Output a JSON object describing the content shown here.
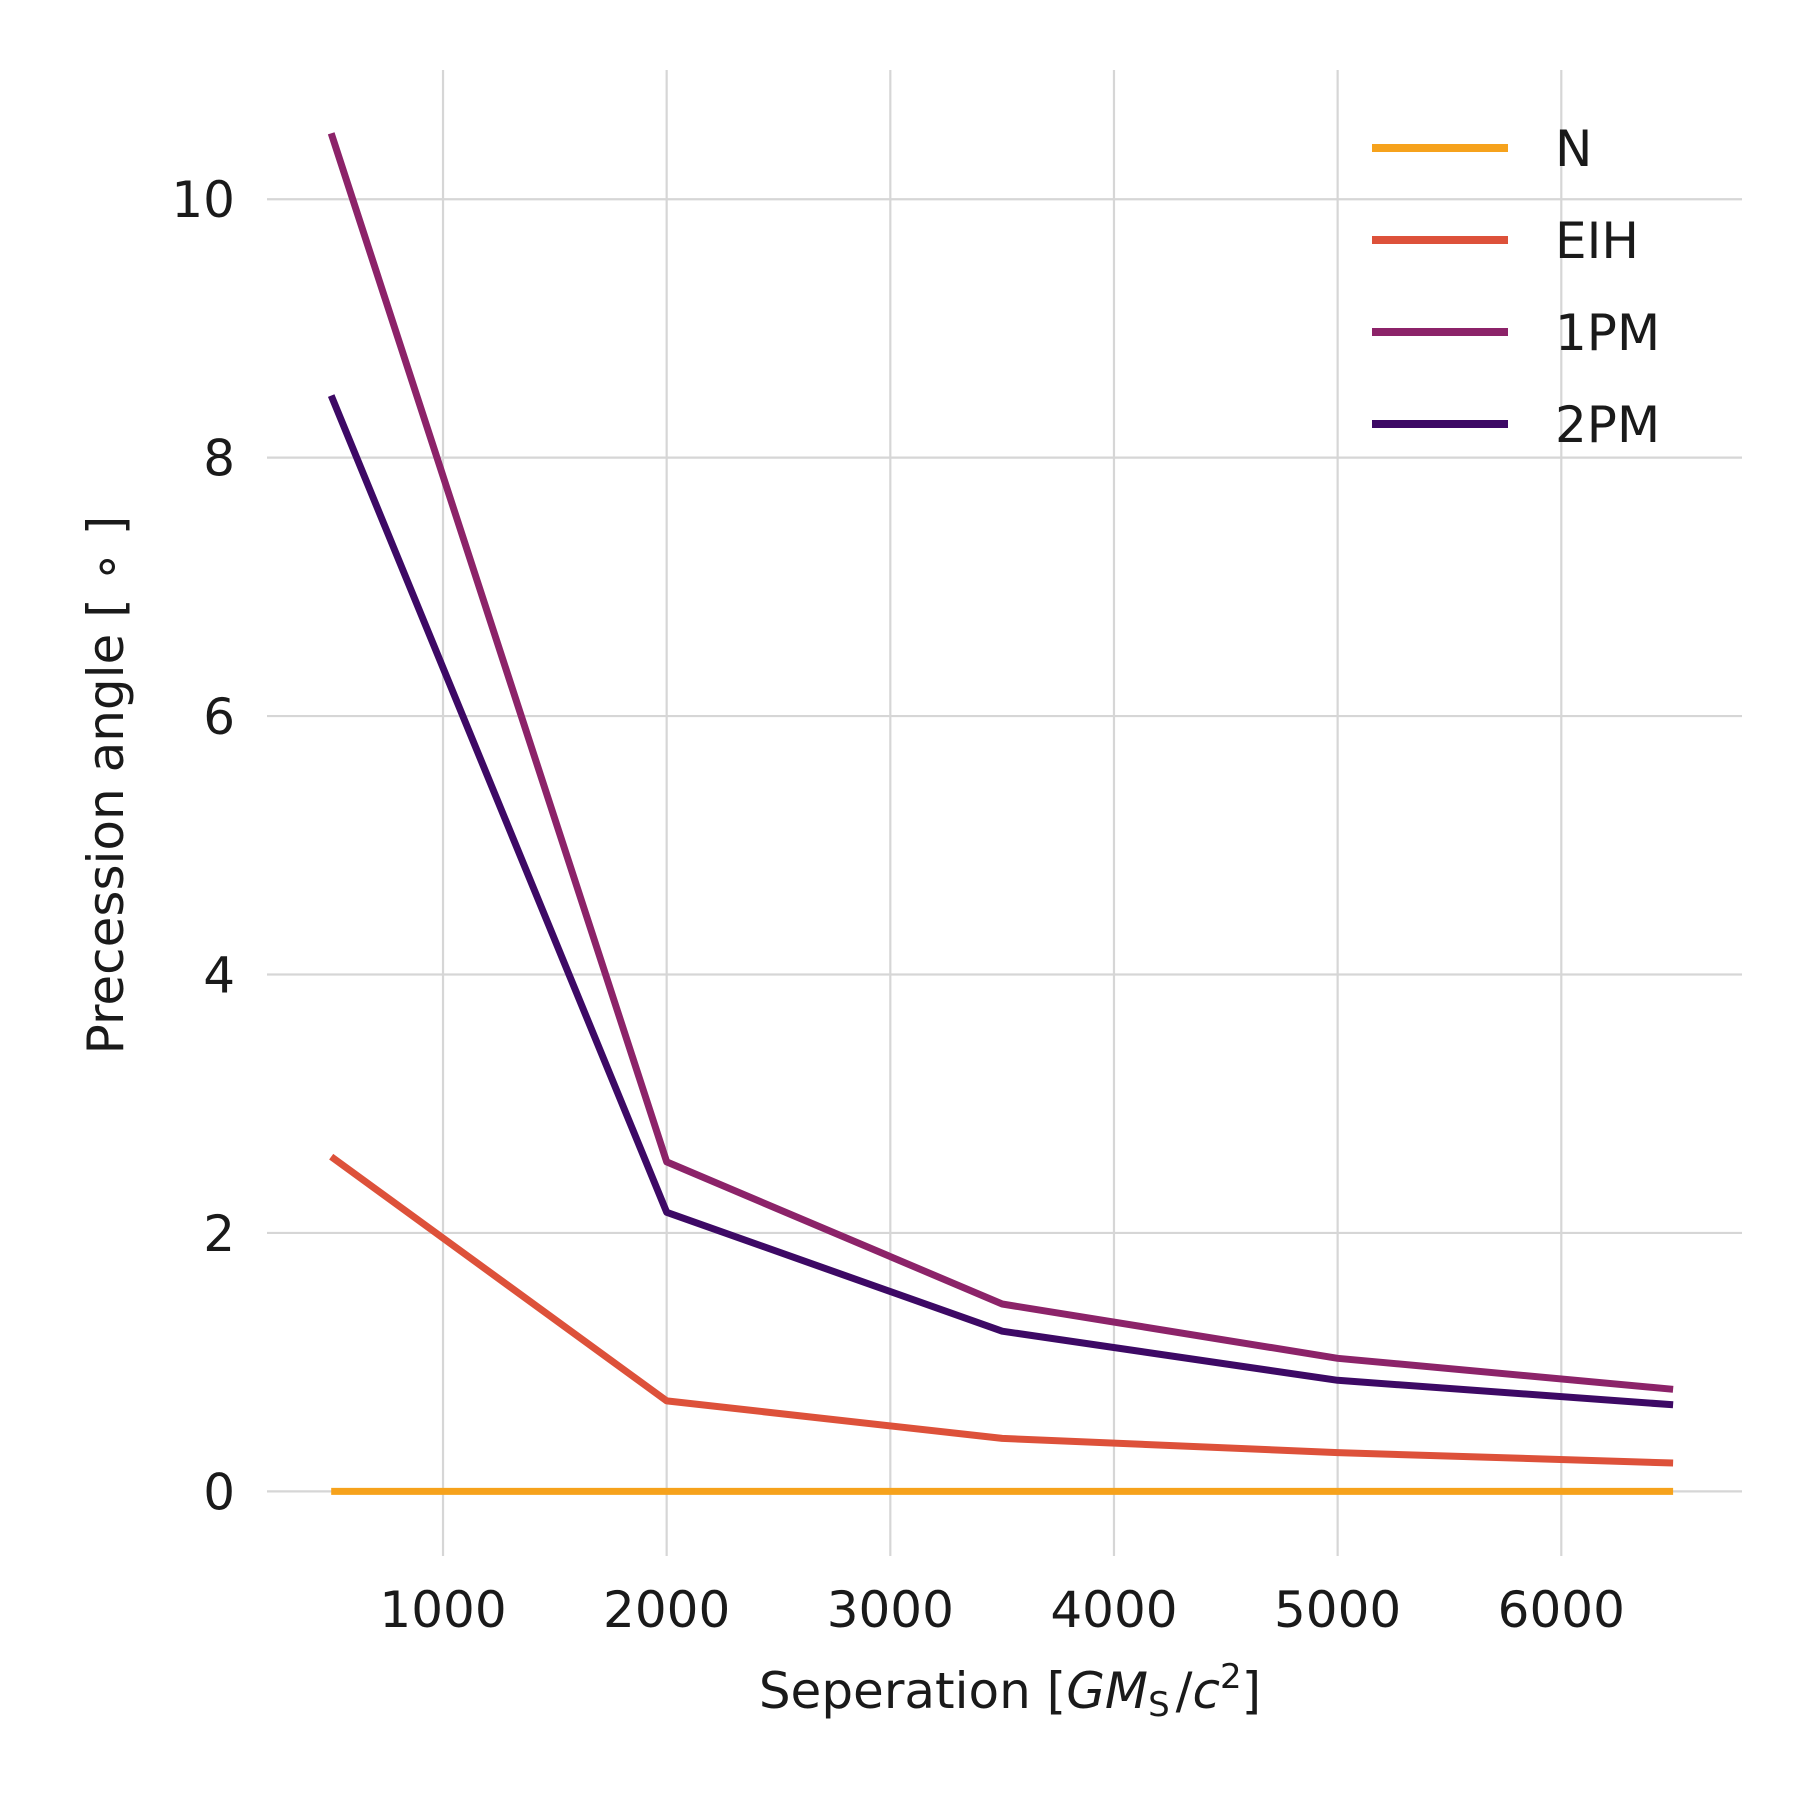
{
  "chart_data": {
    "type": "line",
    "title": "",
    "xlabel": "Seperation [GM_S / c^2]",
    "xlabel_parts": {
      "prefix": "Seperation [",
      "var": "GM",
      "sub": "S",
      "slash": "/",
      "var2": "c",
      "sup": "2",
      "suffix": "]"
    },
    "ylabel": "Precession angle [ ∘ ]",
    "xlim": [
      213,
      6808
    ],
    "ylim": [
      -0.5,
      11
    ],
    "x_ticks": [
      1000,
      2000,
      3000,
      4000,
      5000,
      6000
    ],
    "y_ticks": [
      0,
      2,
      4,
      6,
      8,
      10
    ],
    "grid": true,
    "legend_position": "top-right",
    "x": [
      500,
      2000,
      3500,
      5000,
      6500
    ],
    "series": [
      {
        "name": "N",
        "color": "#f6a21c",
        "values": [
          0,
          0,
          0,
          0,
          0
        ]
      },
      {
        "name": "EIH",
        "color": "#dd513a",
        "values": [
          2.59,
          0.7,
          0.41,
          0.3,
          0.22
        ]
      },
      {
        "name": "1PM",
        "color": "#8c2369",
        "values": [
          10.51,
          2.55,
          1.45,
          1.03,
          0.79
        ]
      },
      {
        "name": "2PM",
        "color": "#3d0965",
        "values": [
          8.48,
          2.16,
          1.24,
          0.86,
          0.67
        ]
      }
    ]
  }
}
